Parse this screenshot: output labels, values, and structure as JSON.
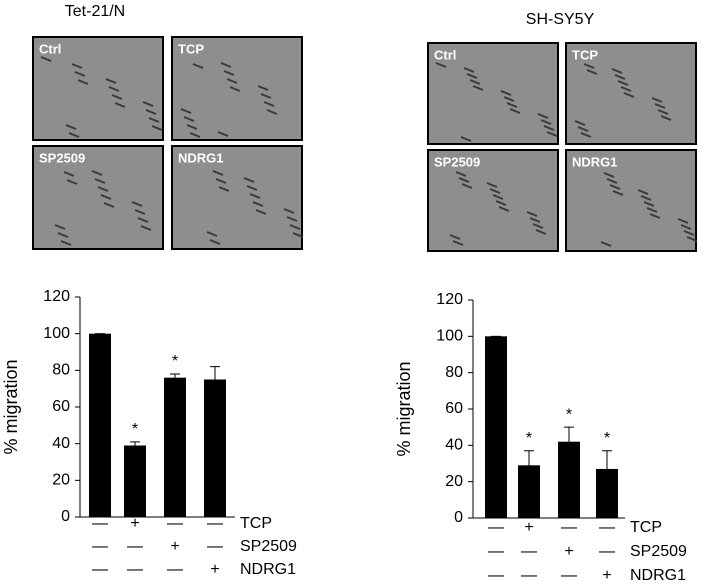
{
  "chart_data": [
    {
      "type": "bar",
      "title": "Tet-21/N",
      "y_label": "% migration",
      "images": [
        "Ctrl",
        "TCP",
        "SP2509",
        "NDRG1"
      ],
      "values": [
        100,
        39,
        76,
        75
      ],
      "errors": [
        0,
        2,
        2,
        7
      ],
      "color": "#000000",
      "annotations": [
        {
          "index": 1,
          "text": "*"
        },
        {
          "index": 2,
          "text": "*"
        }
      ],
      "conditions": [
        {
          "name": "TCP",
          "signs": [
            "—",
            "+",
            "—",
            "—"
          ]
        },
        {
          "name": "SP2509",
          "signs": [
            "—",
            "—",
            "+",
            "—"
          ]
        },
        {
          "name": "NDRG1",
          "signs": [
            "—",
            "—",
            "—",
            "+"
          ]
        }
      ],
      "ylim": [
        0,
        120
      ],
      "yticks": [
        0,
        20,
        40,
        60,
        80,
        100,
        120
      ]
    },
    {
      "type": "bar",
      "title": "SH-SY5Y",
      "y_label": "% migration",
      "images": [
        "Ctrl",
        "TCP",
        "SP2509",
        "NDRG1"
      ],
      "values": [
        100,
        29,
        42,
        27
      ],
      "errors": [
        0,
        8,
        8,
        10
      ],
      "color": "#000000",
      "annotations": [
        {
          "index": 1,
          "text": "*"
        },
        {
          "index": 2,
          "text": "*"
        },
        {
          "index": 3,
          "text": "*"
        }
      ],
      "conditions": [
        {
          "name": "TCP",
          "signs": [
            "—",
            "+",
            "—",
            "—"
          ]
        },
        {
          "name": "SP2509",
          "signs": [
            "—",
            "—",
            "+",
            "—"
          ]
        },
        {
          "name": "NDRG1",
          "signs": [
            "—",
            "—",
            "—",
            "+"
          ]
        }
      ],
      "ylim": [
        0,
        120
      ],
      "yticks": [
        0,
        20,
        40,
        60,
        80,
        100,
        120
      ]
    }
  ]
}
